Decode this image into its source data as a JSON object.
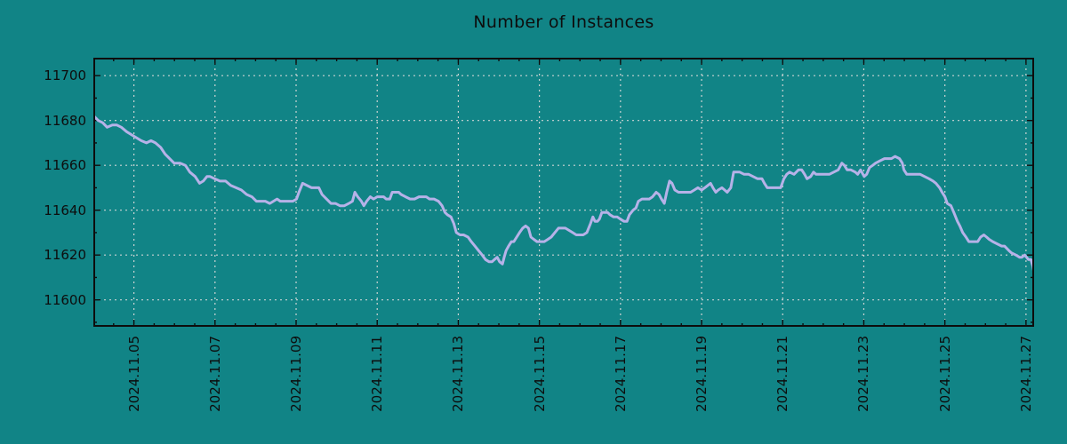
{
  "colors": {
    "background": "#118486",
    "axis": "#0d0d0d",
    "text": "#0d0d0d",
    "grid": "#ccd4d3",
    "line": "#b6b2e8"
  },
  "chart_data": {
    "type": "line",
    "title": "Number of Instances",
    "legend_position": "none",
    "grid": {
      "style": "dashed",
      "color": "#ccd4d3"
    },
    "x_axis": {
      "unit": "days since 2024-11-04",
      "range": [
        0,
        23.2
      ],
      "minor_step": 0.5,
      "major_ticks": [
        {
          "day": 1,
          "label": "2024.11.05"
        },
        {
          "day": 3,
          "label": "2024.11.07"
        },
        {
          "day": 5,
          "label": "2024.11.09"
        },
        {
          "day": 7,
          "label": "2024.11.11"
        },
        {
          "day": 9,
          "label": "2024.11.13"
        },
        {
          "day": 11,
          "label": "2024.11.15"
        },
        {
          "day": 13,
          "label": "2024.11.17"
        },
        {
          "day": 15,
          "label": "2024.11.19"
        },
        {
          "day": 17,
          "label": "2024.11.21"
        },
        {
          "day": 19,
          "label": "2024.11.23"
        },
        {
          "day": 21,
          "label": "2024.11.25"
        },
        {
          "day": 23,
          "label": "2024.11.27"
        }
      ]
    },
    "y_axis": {
      "range": [
        11588,
        11708
      ],
      "minor_step": 10,
      "major_ticks": [
        11600,
        11620,
        11640,
        11660,
        11680,
        11700
      ]
    },
    "series": [
      {
        "name": "instances",
        "color": "#b6b2e8",
        "points": [
          [
            0.01,
            11682
          ],
          [
            0.12,
            11680
          ],
          [
            0.23,
            11679
          ],
          [
            0.34,
            11677
          ],
          [
            0.47,
            11678
          ],
          [
            0.58,
            11678
          ],
          [
            0.69,
            11677
          ],
          [
            0.82,
            11675
          ],
          [
            1.0,
            11673
          ],
          [
            1.18,
            11671
          ],
          [
            1.31,
            11670
          ],
          [
            1.42,
            11671
          ],
          [
            1.53,
            11670
          ],
          [
            1.66,
            11668
          ],
          [
            1.77,
            11665
          ],
          [
            1.88,
            11663
          ],
          [
            1.99,
            11661
          ],
          [
            2.14,
            11661
          ],
          [
            2.27,
            11660
          ],
          [
            2.38,
            11657
          ],
          [
            2.51,
            11655
          ],
          [
            2.62,
            11652
          ],
          [
            2.71,
            11653
          ],
          [
            2.8,
            11655
          ],
          [
            2.88,
            11655
          ],
          [
            2.99,
            11654
          ],
          [
            3.12,
            11653
          ],
          [
            3.26,
            11653
          ],
          [
            3.39,
            11651
          ],
          [
            3.52,
            11650
          ],
          [
            3.65,
            11649
          ],
          [
            3.78,
            11647
          ],
          [
            3.91,
            11646
          ],
          [
            4.02,
            11644
          ],
          [
            4.13,
            11644
          ],
          [
            4.24,
            11644
          ],
          [
            4.35,
            11643
          ],
          [
            4.44,
            11644
          ],
          [
            4.53,
            11645
          ],
          [
            4.61,
            11644
          ],
          [
            4.72,
            11644
          ],
          [
            4.81,
            11644
          ],
          [
            4.92,
            11644
          ],
          [
            5.01,
            11645
          ],
          [
            5.07,
            11648
          ],
          [
            5.16,
            11652
          ],
          [
            5.27,
            11651
          ],
          [
            5.38,
            11650
          ],
          [
            5.49,
            11650
          ],
          [
            5.56,
            11650
          ],
          [
            5.64,
            11647
          ],
          [
            5.75,
            11645
          ],
          [
            5.86,
            11643
          ],
          [
            5.97,
            11643
          ],
          [
            6.08,
            11642
          ],
          [
            6.19,
            11642
          ],
          [
            6.3,
            11643
          ],
          [
            6.39,
            11644
          ],
          [
            6.45,
            11648
          ],
          [
            6.52,
            11646
          ],
          [
            6.61,
            11644
          ],
          [
            6.67,
            11642
          ],
          [
            6.74,
            11644
          ],
          [
            6.83,
            11646
          ],
          [
            6.91,
            11645
          ],
          [
            7.0,
            11646
          ],
          [
            7.09,
            11646
          ],
          [
            7.16,
            11646
          ],
          [
            7.22,
            11645
          ],
          [
            7.31,
            11645
          ],
          [
            7.37,
            11648
          ],
          [
            7.44,
            11648
          ],
          [
            7.53,
            11648
          ],
          [
            7.59,
            11647
          ],
          [
            7.7,
            11646
          ],
          [
            7.81,
            11645
          ],
          [
            7.92,
            11645
          ],
          [
            8.03,
            11646
          ],
          [
            8.1,
            11646
          ],
          [
            8.21,
            11646
          ],
          [
            8.29,
            11645
          ],
          [
            8.4,
            11645
          ],
          [
            8.51,
            11644
          ],
          [
            8.6,
            11642
          ],
          [
            8.67,
            11639
          ],
          [
            8.73,
            11638
          ],
          [
            8.82,
            11637
          ],
          [
            8.89,
            11634
          ],
          [
            8.95,
            11630
          ],
          [
            9.04,
            11629
          ],
          [
            9.13,
            11629
          ],
          [
            9.24,
            11628
          ],
          [
            9.32,
            11626
          ],
          [
            9.41,
            11624
          ],
          [
            9.5,
            11622
          ],
          [
            9.59,
            11620
          ],
          [
            9.67,
            11618
          ],
          [
            9.76,
            11617
          ],
          [
            9.83,
            11617
          ],
          [
            9.89,
            11618
          ],
          [
            9.96,
            11619
          ],
          [
            10.02,
            11617
          ],
          [
            10.09,
            11616
          ],
          [
            10.13,
            11619
          ],
          [
            10.18,
            11622
          ],
          [
            10.24,
            11624
          ],
          [
            10.31,
            11626
          ],
          [
            10.37,
            11626
          ],
          [
            10.44,
            11628
          ],
          [
            10.51,
            11630
          ],
          [
            10.59,
            11632
          ],
          [
            10.66,
            11633
          ],
          [
            10.73,
            11632
          ],
          [
            10.79,
            11628
          ],
          [
            10.86,
            11627
          ],
          [
            10.94,
            11626
          ],
          [
            11.03,
            11626
          ],
          [
            11.12,
            11626
          ],
          [
            11.21,
            11627
          ],
          [
            11.29,
            11628
          ],
          [
            11.38,
            11630
          ],
          [
            11.47,
            11632
          ],
          [
            11.56,
            11632
          ],
          [
            11.64,
            11632
          ],
          [
            11.73,
            11631
          ],
          [
            11.82,
            11630
          ],
          [
            11.91,
            11629
          ],
          [
            12.0,
            11629
          ],
          [
            12.08,
            11629
          ],
          [
            12.17,
            11630
          ],
          [
            12.26,
            11634
          ],
          [
            12.32,
            11637
          ],
          [
            12.37,
            11635
          ],
          [
            12.43,
            11635
          ],
          [
            12.48,
            11636
          ],
          [
            12.54,
            11639
          ],
          [
            12.61,
            11639
          ],
          [
            12.68,
            11639
          ],
          [
            12.74,
            11638
          ],
          [
            12.83,
            11637
          ],
          [
            12.92,
            11637
          ],
          [
            13.0,
            11636
          ],
          [
            13.09,
            11635
          ],
          [
            13.16,
            11635
          ],
          [
            13.22,
            11638
          ],
          [
            13.31,
            11640
          ],
          [
            13.38,
            11641
          ],
          [
            13.44,
            11644
          ],
          [
            13.53,
            11645
          ],
          [
            13.62,
            11645
          ],
          [
            13.71,
            11645
          ],
          [
            13.79,
            11646
          ],
          [
            13.88,
            11648
          ],
          [
            13.95,
            11647
          ],
          [
            14.01,
            11645
          ],
          [
            14.08,
            11643
          ],
          [
            14.14,
            11648
          ],
          [
            14.21,
            11653
          ],
          [
            14.27,
            11652
          ],
          [
            14.34,
            11649
          ],
          [
            14.43,
            11648
          ],
          [
            14.54,
            11648
          ],
          [
            14.65,
            11648
          ],
          [
            14.73,
            11648
          ],
          [
            14.82,
            11649
          ],
          [
            14.91,
            11650
          ],
          [
            15.0,
            11649
          ],
          [
            15.08,
            11650
          ],
          [
            15.15,
            11651
          ],
          [
            15.22,
            11652
          ],
          [
            15.28,
            11650
          ],
          [
            15.35,
            11648
          ],
          [
            15.41,
            11649
          ],
          [
            15.5,
            11650
          ],
          [
            15.57,
            11649
          ],
          [
            15.63,
            11648
          ],
          [
            15.72,
            11650
          ],
          [
            15.79,
            11657
          ],
          [
            15.85,
            11657
          ],
          [
            15.94,
            11657
          ],
          [
            16.05,
            11656
          ],
          [
            16.16,
            11656
          ],
          [
            16.27,
            11655
          ],
          [
            16.38,
            11654
          ],
          [
            16.49,
            11654
          ],
          [
            16.55,
            11652
          ],
          [
            16.62,
            11650
          ],
          [
            16.68,
            11650
          ],
          [
            16.77,
            11650
          ],
          [
            16.86,
            11650
          ],
          [
            16.95,
            11650
          ],
          [
            17.03,
            11654
          ],
          [
            17.1,
            11656
          ],
          [
            17.17,
            11657
          ],
          [
            17.28,
            11656
          ],
          [
            17.39,
            11658
          ],
          [
            17.47,
            11658
          ],
          [
            17.54,
            11656
          ],
          [
            17.6,
            11654
          ],
          [
            17.69,
            11655
          ],
          [
            17.76,
            11657
          ],
          [
            17.82,
            11656
          ],
          [
            17.93,
            11656
          ],
          [
            18.04,
            11656
          ],
          [
            18.15,
            11656
          ],
          [
            18.26,
            11657
          ],
          [
            18.37,
            11658
          ],
          [
            18.46,
            11661
          ],
          [
            18.52,
            11660
          ],
          [
            18.59,
            11658
          ],
          [
            18.68,
            11658
          ],
          [
            18.79,
            11657
          ],
          [
            18.85,
            11656
          ],
          [
            18.92,
            11658
          ],
          [
            19.01,
            11655
          ],
          [
            19.07,
            11656
          ],
          [
            19.14,
            11659
          ],
          [
            19.22,
            11660
          ],
          [
            19.29,
            11661
          ],
          [
            19.4,
            11662
          ],
          [
            19.51,
            11663
          ],
          [
            19.57,
            11663
          ],
          [
            19.68,
            11663
          ],
          [
            19.77,
            11664
          ],
          [
            19.88,
            11663
          ],
          [
            19.95,
            11661
          ],
          [
            19.99,
            11658
          ],
          [
            20.06,
            11656
          ],
          [
            20.17,
            11656
          ],
          [
            20.28,
            11656
          ],
          [
            20.39,
            11656
          ],
          [
            20.5,
            11655
          ],
          [
            20.61,
            11654
          ],
          [
            20.71,
            11653
          ],
          [
            20.78,
            11652
          ],
          [
            20.87,
            11650
          ],
          [
            20.93,
            11648
          ],
          [
            21.0,
            11646
          ],
          [
            21.06,
            11643
          ],
          [
            21.15,
            11642
          ],
          [
            21.22,
            11639
          ],
          [
            21.31,
            11635
          ],
          [
            21.37,
            11633
          ],
          [
            21.44,
            11630
          ],
          [
            21.52,
            11628
          ],
          [
            21.59,
            11626
          ],
          [
            21.7,
            11626
          ],
          [
            21.81,
            11626
          ],
          [
            21.88,
            11628
          ],
          [
            21.96,
            11629
          ],
          [
            22.03,
            11628
          ],
          [
            22.09,
            11627
          ],
          [
            22.18,
            11626
          ],
          [
            22.29,
            11625
          ],
          [
            22.4,
            11624
          ],
          [
            22.47,
            11624
          ],
          [
            22.58,
            11622
          ],
          [
            22.64,
            11621
          ],
          [
            22.75,
            11620
          ],
          [
            22.84,
            11619
          ],
          [
            22.9,
            11619
          ],
          [
            22.97,
            11620
          ],
          [
            23.06,
            11618
          ],
          [
            23.12,
            11618
          ],
          [
            23.17,
            11615
          ],
          [
            23.19,
            11613
          ]
        ]
      }
    ]
  }
}
